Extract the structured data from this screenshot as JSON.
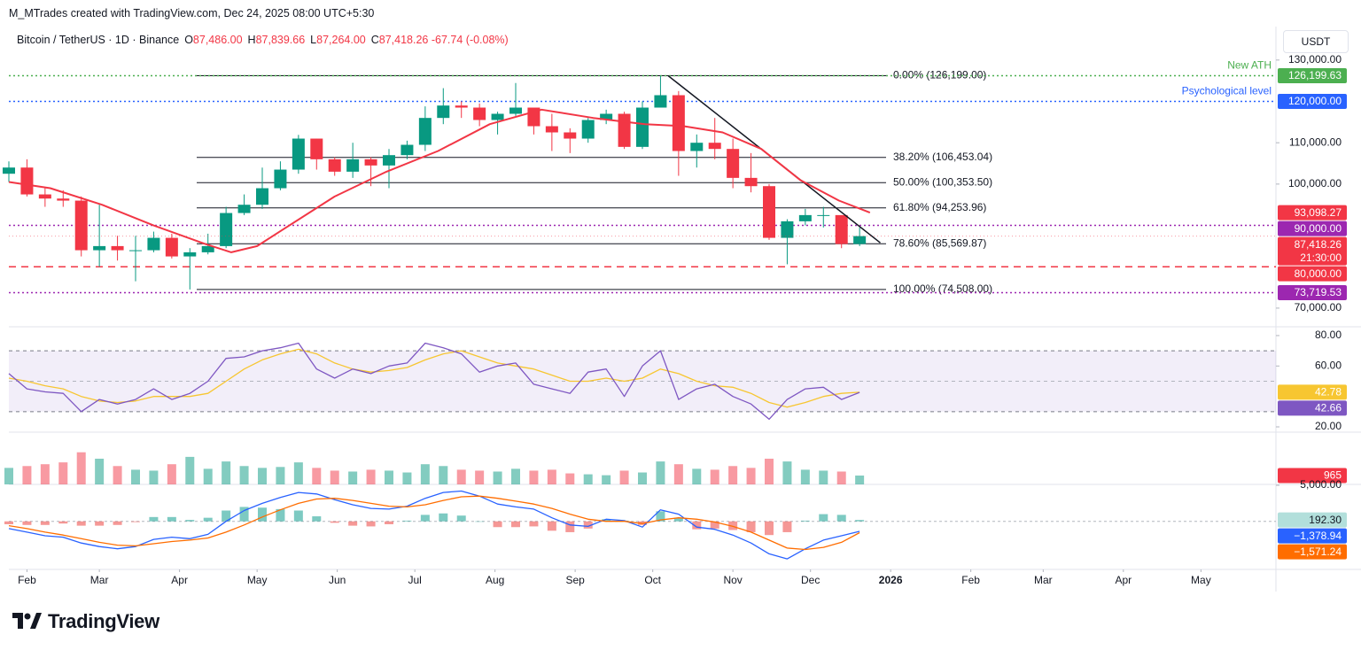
{
  "header": {
    "credit": "M_MTrades created with TradingView.com, Dec 24, 2025 08:00 UTC+5:30",
    "symbol": "Bitcoin / TetherUS · 1D · Binance",
    "ohlc": [
      {
        "label": "O",
        "value": "87,486.00"
      },
      {
        "label": "H",
        "value": "87,839.66"
      },
      {
        "label": "L",
        "value": "87,264.00"
      },
      {
        "label": "C",
        "value": "87,418.26"
      }
    ],
    "change": "-67.74 (-0.08%)",
    "currency": "USDT"
  },
  "footer": {
    "logo": "TradingView"
  },
  "chart_data": [
    {
      "type": "candlestick",
      "xlim": [
        24,
        514
      ],
      "xticks": [
        {
          "value": 31,
          "label": "Feb"
        },
        {
          "value": 59,
          "label": "Mar"
        },
        {
          "value": 90,
          "label": "Apr"
        },
        {
          "value": 120,
          "label": "May"
        },
        {
          "value": 151,
          "label": "Jun"
        },
        {
          "value": 181,
          "label": "Jul"
        },
        {
          "value": 212,
          "label": "Aug"
        },
        {
          "value": 243,
          "label": "Sep"
        },
        {
          "value": 273,
          "label": "Oct"
        },
        {
          "value": 304,
          "label": "Nov"
        },
        {
          "value": 334,
          "label": "Dec"
        },
        {
          "value": 365,
          "label": "2026"
        },
        {
          "value": 396,
          "label": "Feb"
        },
        {
          "value": 424,
          "label": "Mar"
        },
        {
          "value": 455,
          "label": "Apr"
        },
        {
          "value": 485,
          "label": "May"
        }
      ],
      "ylim": [
        65700,
        138100
      ],
      "yticks": [
        {
          "value": 70000,
          "label": "70,000.00"
        },
        {
          "value": 100000,
          "label": "100,000.00"
        },
        {
          "value": 110000,
          "label": "110,000.00"
        },
        {
          "value": 130000,
          "label": "130,000.00"
        }
      ],
      "x": [
        24,
        31,
        38,
        45,
        52,
        59,
        66,
        73,
        80,
        87,
        94,
        101,
        108,
        115,
        122,
        129,
        136,
        143,
        150,
        157,
        164,
        171,
        178,
        185,
        192,
        199,
        206,
        213,
        220,
        227,
        234,
        241,
        248,
        255,
        262,
        269,
        276,
        283,
        290,
        297,
        304,
        311,
        318,
        325,
        332,
        339,
        346,
        353
      ],
      "open": [
        102500,
        104000,
        97500,
        96500,
        96000,
        84000,
        85000,
        84000,
        84000,
        87000,
        82500,
        83500,
        85000,
        93000,
        95000,
        99000,
        103500,
        111000,
        106000,
        103000,
        106000,
        104500,
        107000,
        109500,
        116000,
        119000,
        118500,
        115500,
        117000,
        118500,
        114000,
        112500,
        111000,
        115500,
        117000,
        109000,
        118500,
        121500,
        108000,
        110000,
        108500,
        101500,
        99500,
        87000,
        91000,
        92500,
        92500,
        85500
      ],
      "high": [
        105500,
        106000,
        99000,
        98500,
        97000,
        95000,
        87500,
        87500,
        88500,
        88000,
        84500,
        88000,
        94500,
        97500,
        104000,
        105500,
        111900,
        111000,
        106500,
        110000,
        106500,
        108500,
        110500,
        118800,
        123200,
        120000,
        119500,
        117500,
        124457,
        118500,
        117000,
        113500,
        116000,
        118000,
        117500,
        120000,
        126199,
        122500,
        112000,
        116000,
        111000,
        107500,
        100000,
        91500,
        94000,
        94500,
        92500,
        89500
      ],
      "low": [
        100500,
        97000,
        94500,
        94500,
        82500,
        80000,
        81500,
        76500,
        83500,
        82000,
        74508,
        83000,
        84500,
        92500,
        94000,
        98500,
        102500,
        103500,
        102000,
        101500,
        99500,
        99000,
        106000,
        108000,
        114500,
        116000,
        114000,
        112000,
        116500,
        112000,
        108000,
        107500,
        110000,
        114500,
        108500,
        108500,
        118500,
        102000,
        104000,
        106000,
        99000,
        98000,
        86500,
        80600,
        90000,
        89500,
        84500,
        85000
      ],
      "close": [
        104000,
        97500,
        96500,
        96000,
        84000,
        85000,
        84000,
        84000,
        87000,
        82500,
        83500,
        85000,
        93000,
        95000,
        99000,
        103500,
        111000,
        106000,
        103000,
        106000,
        104500,
        107000,
        109500,
        116000,
        119000,
        118500,
        115500,
        117000,
        118500,
        114000,
        112500,
        111000,
        115500,
        117000,
        109000,
        118500,
        121500,
        108000,
        110000,
        108500,
        101500,
        99500,
        87000,
        91000,
        92500,
        92500,
        85500,
        87418.26
      ],
      "up_color": "#089981",
      "down_color": "#f23645",
      "series": [
        {
          "style": "line",
          "color": "#f23645",
          "x": [
            24,
            40,
            60,
            80,
            100,
            110,
            120,
            130,
            150,
            170,
            190,
            210,
            230,
            250,
            270,
            285,
            300,
            315,
            330,
            345,
            357
          ],
          "values": [
            100500,
            99000,
            95000,
            90000,
            85500,
            83500,
            85000,
            89000,
            97000,
            103000,
            108000,
            114500,
            118000,
            116000,
            114500,
            114000,
            112500,
            108500,
            101000,
            96000,
            93098.27
          ],
          "badge": "93,098.27"
        }
      ],
      "last_price": {
        "value": 87418.26,
        "label": "87,418.26",
        "countdown": "21:30:00",
        "color": "#f23645"
      },
      "hlines": [
        {
          "value": 126199.63,
          "color": "#4caf50",
          "style": "dotted",
          "label": "New ATH",
          "badge": "126,199.63"
        },
        {
          "value": 120000,
          "color": "#2962ff",
          "style": "dotted",
          "label": "Psychological level",
          "badge": "120,000.00"
        },
        {
          "value": 90000,
          "color": "#9c27b0",
          "style": "dotted",
          "badge": "90,000.00"
        },
        {
          "value": 80000,
          "color": "#f23645",
          "style": "dashed",
          "badge": "80,000.00"
        },
        {
          "value": 73719.53,
          "color": "#9c27b0",
          "style": "dotted",
          "badge": "73,719.53"
        }
      ],
      "fib": [
        {
          "value": 126199,
          "label": "0.00% (126,199.00)"
        },
        {
          "value": 106453.04,
          "label": "38.20% (106,453.04)"
        },
        {
          "value": 100353.5,
          "label": "50.00% (100,353.50)"
        },
        {
          "value": 94253.96,
          "label": "61.80% (94,253.96)"
        },
        {
          "value": 85569.87,
          "label": "78.60% (85,569.87)"
        },
        {
          "value": 74508,
          "label": "100.00% (74,508.00)"
        }
      ],
      "trendline": {
        "x": [
          279,
          361
        ],
        "y": [
          126199,
          85800
        ]
      }
    },
    {
      "type": "line",
      "ylim": [
        17.1,
        85.2
      ],
      "yticks": [
        {
          "value": 20,
          "label": "20.00"
        },
        {
          "value": 60,
          "label": "60.00"
        },
        {
          "value": 80,
          "label": "80.00"
        }
      ],
      "band": [
        30,
        70
      ],
      "midline": 50,
      "x": [
        24,
        31,
        38,
        45,
        52,
        59,
        66,
        73,
        80,
        87,
        94,
        101,
        108,
        115,
        122,
        129,
        136,
        143,
        150,
        157,
        164,
        171,
        178,
        185,
        192,
        199,
        206,
        213,
        220,
        227,
        234,
        241,
        248,
        255,
        262,
        269,
        276,
        283,
        290,
        297,
        304,
        311,
        318,
        325,
        332,
        339,
        346,
        353
      ],
      "series": [
        {
          "style": "line",
          "color": "#f7c631",
          "values": [
            52,
            50,
            47,
            45,
            40,
            37,
            36,
            37,
            40,
            40,
            40,
            42,
            50,
            58,
            64,
            68,
            71,
            68,
            62,
            58,
            56,
            57,
            59,
            64,
            68,
            70,
            66,
            62,
            60,
            58,
            54,
            50,
            50,
            52,
            50,
            52,
            58,
            55,
            50,
            47,
            46,
            42,
            36,
            33,
            36,
            40,
            42,
            42.78
          ],
          "badge": "42.78"
        },
        {
          "style": "line",
          "color": "#7e57c2",
          "values": [
            55,
            45,
            43,
            42,
            30,
            38,
            35,
            38,
            45,
            38,
            42,
            50,
            65,
            66,
            70,
            72,
            75,
            58,
            52,
            58,
            55,
            60,
            62,
            75,
            72,
            68,
            56,
            60,
            62,
            48,
            45,
            42,
            56,
            58,
            40,
            60,
            70,
            38,
            45,
            48,
            40,
            35,
            25,
            38,
            45,
            46,
            38,
            42.66
          ],
          "badge": "42.66"
        }
      ]
    },
    {
      "type": "bar",
      "ylim": [
        0,
        5500
      ],
      "x": [
        24,
        31,
        38,
        45,
        52,
        59,
        66,
        73,
        80,
        87,
        94,
        101,
        108,
        115,
        122,
        129,
        136,
        143,
        150,
        157,
        164,
        171,
        178,
        185,
        192,
        199,
        206,
        213,
        220,
        227,
        234,
        241,
        248,
        255,
        262,
        269,
        276,
        283,
        290,
        297,
        304,
        311,
        318,
        325,
        332,
        339,
        346,
        353
      ],
      "values": [
        1800,
        2000,
        2200,
        2400,
        3500,
        2800,
        2000,
        1600,
        1500,
        2200,
        3000,
        1700,
        2500,
        2000,
        1800,
        1900,
        2400,
        1800,
        1500,
        1400,
        1600,
        1500,
        1300,
        2200,
        2000,
        1600,
        1500,
        1400,
        1700,
        1500,
        1600,
        1200,
        1100,
        1000,
        1500,
        1300,
        2500,
        2200,
        1700,
        1600,
        2000,
        1800,
        2800,
        2500,
        1600,
        1500,
        1400,
        965
      ],
      "badge": "965",
      "badge_color": "#f23645"
    },
    {
      "type": "line",
      "ylim": [
        -6540,
        5000
      ],
      "yticks": [
        {
          "value": 5000,
          "label": "5,000.00"
        }
      ],
      "x": [
        24,
        31,
        38,
        45,
        52,
        59,
        66,
        73,
        80,
        87,
        94,
        101,
        108,
        115,
        122,
        129,
        136,
        143,
        150,
        157,
        164,
        171,
        178,
        185,
        192,
        199,
        206,
        213,
        220,
        227,
        234,
        241,
        248,
        255,
        262,
        269,
        276,
        283,
        290,
        297,
        304,
        311,
        318,
        325,
        332,
        339,
        346,
        353
      ],
      "series": [
        {
          "style": "bar",
          "color": "#26a69a",
          "neg_color": "#ef5350",
          "values": [
            -400,
            -500,
            -500,
            -300,
            -600,
            -600,
            -500,
            -100,
            600,
            600,
            200,
            500,
            1500,
            2000,
            1900,
            1700,
            1500,
            700,
            -200,
            -600,
            -700,
            -400,
            100,
            900,
            1100,
            800,
            0,
            -800,
            -800,
            -700,
            -1300,
            -1500,
            -1000,
            300,
            100,
            -500,
            1400,
            500,
            -1100,
            -1000,
            -1200,
            -1500,
            -1900,
            -1500,
            100,
            1000,
            900,
            192.3
          ],
          "badge": "192.30",
          "badge_color": "#b2dfdb"
        },
        {
          "style": "line",
          "color": "#2962ff",
          "values": [
            -1000,
            -1500,
            -2000,
            -2200,
            -3000,
            -3500,
            -3800,
            -3500,
            -2500,
            -2200,
            -2400,
            -1800,
            0,
            1500,
            2500,
            3300,
            4000,
            3800,
            3000,
            2300,
            1800,
            1700,
            2100,
            3200,
            4000,
            4200,
            3500,
            2400,
            2000,
            1700,
            500,
            -500,
            -700,
            300,
            100,
            -800,
            1600,
            1000,
            -800,
            -1100,
            -1900,
            -3000,
            -4500,
            -5200,
            -3800,
            -2600,
            -2000,
            -1378.94
          ],
          "badge": "−1,378.94"
        },
        {
          "style": "line",
          "color": "#ff6d00",
          "values": [
            -600,
            -1000,
            -1500,
            -1900,
            -2400,
            -2900,
            -3300,
            -3400,
            -3100,
            -2800,
            -2600,
            -2300,
            -1500,
            -500,
            600,
            1600,
            2500,
            3100,
            3200,
            2900,
            2500,
            2100,
            2000,
            2300,
            2900,
            3400,
            3500,
            3200,
            2800,
            2400,
            1800,
            1000,
            300,
            0,
            0,
            -300,
            200,
            500,
            300,
            -100,
            -700,
            -1500,
            -2600,
            -3700,
            -3900,
            -3600,
            -2900,
            -1571.24
          ],
          "badge": "−1,571.24"
        }
      ]
    }
  ]
}
